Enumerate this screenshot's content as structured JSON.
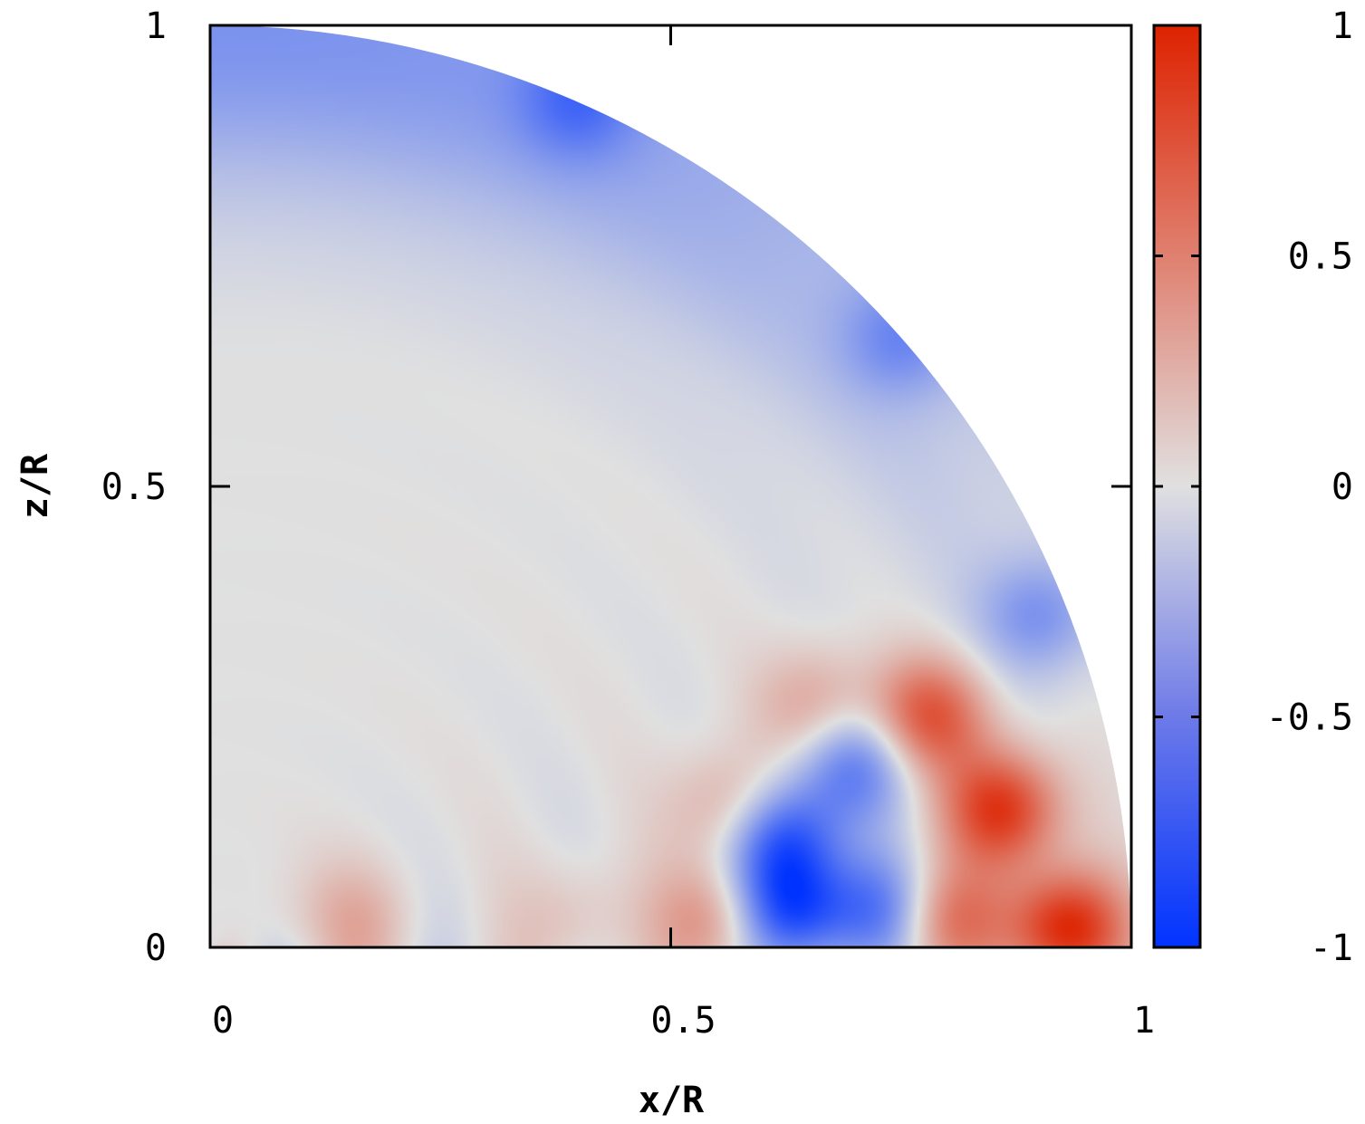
{
  "chart_data": {
    "type": "heatmap",
    "title": "",
    "xlabel": "x/R",
    "ylabel": "z/R",
    "xlim": [
      0,
      1
    ],
    "ylim": [
      0,
      1
    ],
    "x_ticks": [
      0,
      0.5,
      1
    ],
    "x_tick_labels": [
      "0",
      "0.5",
      "1"
    ],
    "y_ticks": [
      0,
      0.5,
      1
    ],
    "y_tick_labels": [
      "0",
      "0.5",
      "1"
    ],
    "domain": "quarter disk, x^2 + z^2 <= 1",
    "colorbar": {
      "range": [
        -1,
        1
      ],
      "ticks": [
        -1,
        -0.5,
        0,
        0.5,
        1
      ],
      "tick_labels": [
        "-1",
        "-0.5",
        "0",
        "0.5",
        "1"
      ],
      "colors": {
        "min": "#0033ff",
        "mid": "#e0e0e0",
        "max": "#dd2200"
      }
    },
    "features": [
      {
        "x": 0.93,
        "z": 0.02,
        "value": 1.0
      },
      {
        "x": 0.86,
        "z": 0.15,
        "value": 0.9
      },
      {
        "x": 0.78,
        "z": 0.25,
        "value": 0.75
      },
      {
        "x": 0.8,
        "z": 0.03,
        "value": 0.6
      },
      {
        "x": 0.73,
        "z": 0.04,
        "value": -0.6
      },
      {
        "x": 0.63,
        "z": 0.04,
        "value": -0.85
      },
      {
        "x": 0.62,
        "z": 0.12,
        "value": -0.8
      },
      {
        "x": 0.7,
        "z": 0.2,
        "value": -0.6
      },
      {
        "x": 0.55,
        "z": 0.03,
        "value": 0.45
      },
      {
        "x": 0.57,
        "z": 0.15,
        "value": 0.4
      },
      {
        "x": 0.66,
        "z": 0.26,
        "value": 0.35
      },
      {
        "x": 0.15,
        "z": 0.03,
        "value": 0.25
      },
      {
        "x": 0.4,
        "z": 0.03,
        "value": 0.18
      },
      {
        "x": 0.4,
        "z": 0.92,
        "value": -0.35
      },
      {
        "x": 0.75,
        "z": 0.66,
        "value": -0.35
      },
      {
        "x": 0.9,
        "z": 0.36,
        "value": -0.4
      }
    ]
  }
}
